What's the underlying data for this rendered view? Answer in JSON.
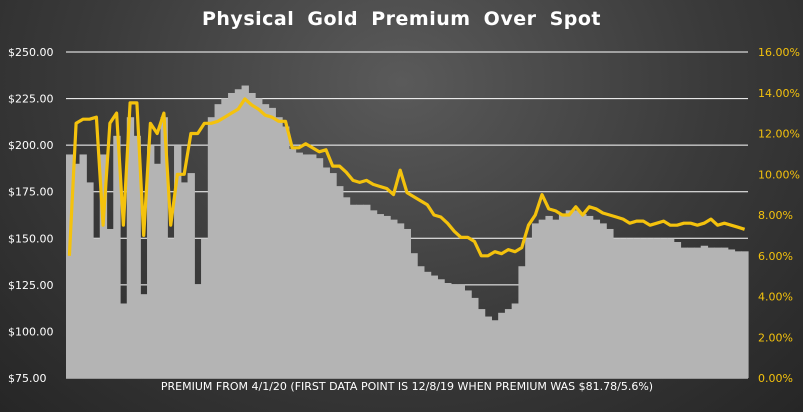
{
  "chart_data": {
    "type": "bar",
    "title": "Physical  Gold  Premium  Over  Spot",
    "xlabel": "PREMIUM  FROM 4/1/20 (FIRST DATA POINT IS 12/8/19 WHEN PREMIUM WAS $81.78/5.6%)",
    "ylabel": "",
    "ylim": [
      75,
      250
    ],
    "y2lim": [
      0,
      16
    ],
    "grid": true,
    "left_ticks": [
      "$250.00",
      "$225.00",
      "$200.00",
      "$175.00",
      "$150.00",
      "$125.00",
      "$100.00",
      "$75.00"
    ],
    "right_ticks": [
      "16.00%",
      "14.00%",
      "12.00%",
      "10.00%",
      "8.00%",
      "6.00%",
      "4.00%",
      "2.00%",
      "0.00%"
    ],
    "bar_color": "#b4b4b4",
    "line_color": "#f4c20d",
    "series": [
      {
        "type": "bar",
        "axis": "left",
        "values": [
          195,
          190,
          195,
          180,
          150,
          195,
          155,
          205,
          115,
          215,
          205,
          120,
          200,
          190,
          215,
          150,
          200,
          180,
          185,
          125,
          150,
          215,
          222,
          225,
          228,
          230,
          232,
          228,
          225,
          222,
          220,
          215,
          210,
          198,
          196,
          195,
          195,
          193,
          188,
          185,
          178,
          172,
          168,
          168,
          168,
          165,
          163,
          162,
          160,
          158,
          155,
          142,
          135,
          132,
          130,
          128,
          126,
          125,
          125,
          122,
          118,
          112,
          108,
          106,
          110,
          112,
          115,
          135,
          150,
          158,
          160,
          162,
          160,
          163,
          165,
          165,
          163,
          162,
          160,
          158,
          155,
          150,
          150,
          150,
          150,
          150,
          150,
          150,
          150,
          150,
          148,
          145,
          145,
          145,
          146,
          145,
          145,
          145,
          144,
          143,
          143
        ]
      },
      {
        "type": "line",
        "axis": "right",
        "values": [
          6.0,
          12.5,
          12.7,
          12.7,
          12.8,
          7.5,
          12.5,
          13.0,
          7.5,
          13.5,
          13.5,
          7.0,
          12.5,
          12.0,
          13.0,
          7.5,
          10.0,
          10.0,
          12.0,
          12.0,
          12.5,
          12.5,
          12.6,
          12.8,
          13.0,
          13.2,
          13.7,
          13.4,
          13.2,
          12.9,
          12.8,
          12.6,
          12.6,
          11.3,
          11.3,
          11.5,
          11.3,
          11.1,
          11.2,
          10.4,
          10.4,
          10.1,
          9.7,
          9.6,
          9.7,
          9.5,
          9.4,
          9.3,
          9.0,
          10.2,
          9.1,
          8.9,
          8.7,
          8.5,
          8.0,
          7.9,
          7.6,
          7.2,
          6.9,
          6.9,
          6.7,
          6.0,
          6.0,
          6.2,
          6.1,
          6.3,
          6.2,
          6.4,
          7.5,
          8.0,
          9.0,
          8.3,
          8.2,
          8.0,
          8.0,
          8.4,
          8.0,
          8.4,
          8.3,
          8.1,
          8.0,
          7.9,
          7.8,
          7.6,
          7.7,
          7.7,
          7.5,
          7.6,
          7.7,
          7.5,
          7.5,
          7.6,
          7.6,
          7.5,
          7.6,
          7.8,
          7.5,
          7.6,
          7.5,
          7.4,
          7.3
        ]
      }
    ]
  }
}
